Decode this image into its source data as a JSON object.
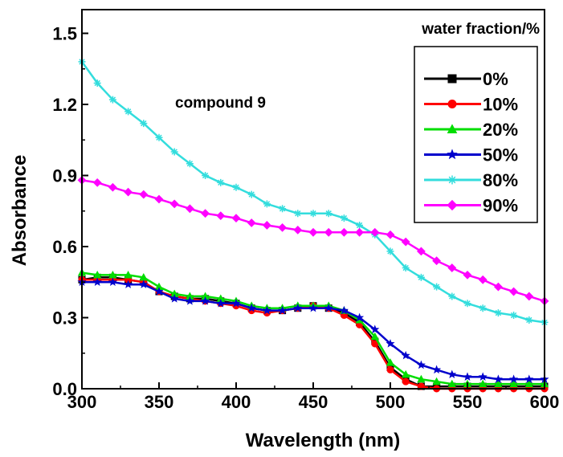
{
  "chart_data": {
    "type": "line",
    "xlabel": "Wavelength (nm)",
    "ylabel": "Absorbance",
    "xlim": [
      300,
      600
    ],
    "ylim": [
      0.0,
      1.6
    ],
    "x_ticks": [
      "300",
      "350",
      "400",
      "450",
      "500",
      "550",
      "600"
    ],
    "y_ticks": [
      "0.0",
      "0.3",
      "0.6",
      "0.9",
      "1.2",
      "1.5"
    ],
    "annotation": "compound 9",
    "legend_title": "water fraction/%",
    "legend_position": "top-right",
    "grid": false,
    "x": [
      300,
      310,
      320,
      330,
      340,
      350,
      360,
      370,
      380,
      390,
      400,
      410,
      420,
      430,
      440,
      450,
      460,
      470,
      480,
      490,
      500,
      510,
      520,
      530,
      540,
      550,
      560,
      570,
      580,
      590,
      600
    ],
    "series": [
      {
        "name": "0%",
        "color": "#000000",
        "marker": "square",
        "values": [
          0.46,
          0.47,
          0.47,
          0.46,
          0.45,
          0.41,
          0.39,
          0.38,
          0.38,
          0.37,
          0.36,
          0.34,
          0.33,
          0.33,
          0.34,
          0.35,
          0.34,
          0.32,
          0.28,
          0.2,
          0.09,
          0.04,
          0.01,
          0.01,
          0.01,
          0.01,
          0.01,
          0.01,
          0.01,
          0.01,
          0.01
        ]
      },
      {
        "name": "10%",
        "color": "#ff0000",
        "marker": "circle",
        "values": [
          0.46,
          0.46,
          0.46,
          0.46,
          0.45,
          0.41,
          0.39,
          0.38,
          0.37,
          0.36,
          0.35,
          0.33,
          0.32,
          0.33,
          0.34,
          0.35,
          0.34,
          0.31,
          0.27,
          0.19,
          0.08,
          0.03,
          0.01,
          0.0,
          0.0,
          0.0,
          0.0,
          0.0,
          0.0,
          0.0,
          0.0
        ]
      },
      {
        "name": "20%",
        "color": "#00dd00",
        "marker": "triangle",
        "values": [
          0.49,
          0.48,
          0.48,
          0.48,
          0.47,
          0.43,
          0.4,
          0.39,
          0.39,
          0.38,
          0.37,
          0.35,
          0.34,
          0.34,
          0.35,
          0.35,
          0.35,
          0.33,
          0.29,
          0.22,
          0.11,
          0.06,
          0.04,
          0.03,
          0.02,
          0.02,
          0.02,
          0.02,
          0.02,
          0.02,
          0.02
        ]
      },
      {
        "name": "50%",
        "color": "#0000cc",
        "marker": "star",
        "values": [
          0.45,
          0.45,
          0.45,
          0.44,
          0.44,
          0.41,
          0.38,
          0.37,
          0.37,
          0.36,
          0.36,
          0.34,
          0.33,
          0.33,
          0.34,
          0.34,
          0.34,
          0.33,
          0.3,
          0.25,
          0.19,
          0.14,
          0.1,
          0.08,
          0.06,
          0.05,
          0.05,
          0.04,
          0.04,
          0.04,
          0.04
        ]
      },
      {
        "name": "80%",
        "color": "#33dddd",
        "marker": "asterisk",
        "values": [
          1.38,
          1.29,
          1.22,
          1.17,
          1.12,
          1.06,
          1.0,
          0.95,
          0.9,
          0.87,
          0.85,
          0.82,
          0.78,
          0.76,
          0.74,
          0.74,
          0.74,
          0.72,
          0.69,
          0.65,
          0.58,
          0.51,
          0.47,
          0.43,
          0.39,
          0.36,
          0.34,
          0.32,
          0.31,
          0.29,
          0.28
        ]
      },
      {
        "name": "90%",
        "color": "#ff00ff",
        "marker": "diamond",
        "values": [
          0.88,
          0.87,
          0.85,
          0.83,
          0.82,
          0.8,
          0.78,
          0.76,
          0.74,
          0.73,
          0.72,
          0.7,
          0.69,
          0.68,
          0.67,
          0.66,
          0.66,
          0.66,
          0.66,
          0.66,
          0.65,
          0.62,
          0.58,
          0.54,
          0.51,
          0.48,
          0.46,
          0.43,
          0.41,
          0.39,
          0.37
        ]
      }
    ]
  }
}
